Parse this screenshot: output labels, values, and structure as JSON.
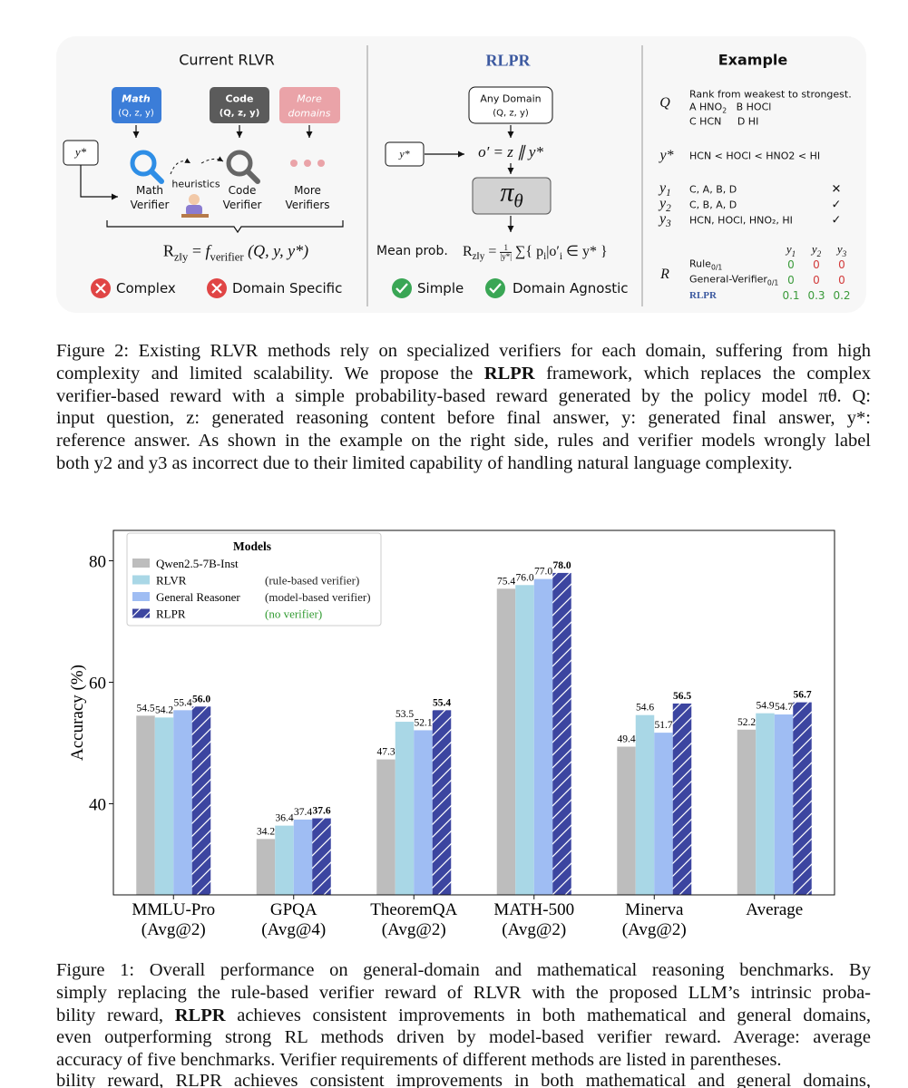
{
  "diagram": {
    "current": {
      "title": "Current RLVR",
      "domains": [
        {
          "name": "Math",
          "args": "(Q, z, y)"
        },
        {
          "name": "Code",
          "args": "(Q, z, y)"
        },
        {
          "name": "More",
          "args": "domains"
        }
      ],
      "reference": "y*",
      "heuristics": "heuristics",
      "verifiers": [
        [
          "Math",
          "Verifier"
        ],
        [
          "Code",
          "Verifier"
        ],
        [
          "More",
          "Verifiers"
        ]
      ],
      "formula": {
        "r": "R",
        "r_sub": "z‖y",
        "eq": "=",
        "f": "f",
        "f_sub": "verifier",
        "args": "(Q, y, y*)"
      },
      "cons": [
        "Complex",
        "Domain Specific"
      ]
    },
    "rlpr": {
      "title": "RLPR",
      "input": [
        "Any Domain",
        "(Q, z, y)"
      ],
      "reference": "y*",
      "concat": "o′ = z ∥ y*",
      "policy": "π",
      "policy_sub": "θ",
      "mean_label": "Mean prob.",
      "formula": {
        "r": "R",
        "r_sub": "z‖y",
        "eq": "=",
        "num": "1",
        "den": "|y*|",
        "sum": "∑{ p",
        "i1": "i",
        "mid": "|o′",
        "i2": "i",
        "rest": "∈ y* }"
      },
      "pros": [
        "Simple",
        "Domain Agnostic"
      ]
    },
    "example": {
      "title": "Example",
      "q_label": "Q",
      "question": "Rank from weakest to strongest.",
      "option_a": "A HNO",
      "option_a_sub": "2",
      "option_b": "B HOCl",
      "option_c": "C HCN",
      "option_d": "D HI",
      "ref_label": "y*",
      "ref_answer": "HCN < HOCl < HNO2 < HI",
      "responses": [
        {
          "label": "y",
          "sub": "1",
          "answer": "C, A, B, D",
          "mark": "✕"
        },
        {
          "label": "y",
          "sub": "2",
          "answer": "C, B, A, D",
          "mark": "✓"
        },
        {
          "label": "y",
          "sub": "3",
          "answer": "HCN, HOCl, HNO₂, HI",
          "mark": "✓"
        }
      ],
      "r_label": "R",
      "columns": [
        {
          "label": "y",
          "sub": "1"
        },
        {
          "label": "y",
          "sub": "2"
        },
        {
          "label": "y",
          "sub": "3"
        }
      ],
      "rows": [
        {
          "name": "Rule",
          "sub": "0/1",
          "values": [
            0,
            0,
            0
          ],
          "colors": [
            "#3a9a3a",
            "#d23a3a",
            "#d23a3a"
          ]
        },
        {
          "name": "General-Verifier",
          "sub": "0/1",
          "values": [
            0,
            0,
            0
          ],
          "colors": [
            "#3a9a3a",
            "#d23a3a",
            "#d23a3a"
          ]
        },
        {
          "name": "RLPR",
          "values": [
            0.1,
            0.3,
            0.2
          ],
          "colors": [
            "#3a9a3a",
            "#3a9a3a",
            "#3a9a3a"
          ]
        }
      ]
    }
  },
  "caption2": [
    "Figure 2: Existing RLVR methods rely on specialized verifiers for each domain, suffering from high",
    "complexity and limited scalability. We propose the RLPR framework, which replaces the complex",
    "verifier-based reward with a simple probability-based reward generated by the policy model πθ. Q:",
    "input question, z: generated reasoning content before final answer, y: generated final answer, y*:",
    "reference answer. As shown in the example on the right side, rules and verifier models wrongly label",
    "both y2 and y3 as incorrect due to their limited capability of handling natural language complexity."
  ],
  "chart_data": {
    "type": "bar",
    "ylabel": "Accuracy (%)",
    "categories": [
      "MMLU-Pro",
      "GPQA",
      "TheoremQA",
      "MATH-500",
      "Minerva",
      "Average"
    ],
    "category_notes": [
      "(Avg@2)",
      "(Avg@4)",
      "(Avg@2)",
      "(Avg@2)",
      "(Avg@2)",
      null
    ],
    "series": [
      {
        "name": "Qwen2.5-7B-Inst",
        "color": "#bdbdbd",
        "values": [
          54.5,
          34.2,
          47.3,
          75.4,
          49.4,
          52.2
        ],
        "value_labels": [
          "54.5",
          "34.2",
          "47.3",
          "75.4",
          "49.4",
          "52.2"
        ]
      },
      {
        "name": "RLVR",
        "color": "#a9d7e6",
        "values": [
          54.2,
          36.4,
          53.5,
          76.0,
          54.6,
          54.9
        ],
        "value_labels": [
          "54.2",
          "36.4",
          "53.5",
          "76.0",
          "54.6",
          "54.9"
        ]
      },
      {
        "name": "General Reasoner",
        "color": "#9fbdf3",
        "values": [
          55.4,
          37.4,
          52.1,
          77.0,
          51.7,
          54.7
        ],
        "value_labels": [
          "55.4",
          "37.4",
          "52.1",
          "77.0",
          "51.7",
          "54.7"
        ]
      },
      {
        "name": "RLPR",
        "color": "#3c45a0",
        "hatch": true,
        "values": [
          56.0,
          37.6,
          55.4,
          78.0,
          56.5,
          56.7
        ],
        "value_labels": [
          "56.0",
          "37.6",
          "55.4",
          "78.0",
          "56.5",
          "56.7"
        ]
      }
    ],
    "legend": {
      "title": "Models",
      "position": "upper left",
      "notes": [
        null,
        "(rule-based verifier)",
        "(model-based verifier)",
        "(no verifier)"
      ],
      "note_colors": [
        null,
        "#222222",
        "#222222",
        "#2f9a2f"
      ]
    },
    "ylim": [
      25,
      85
    ],
    "yticks": [
      40,
      60,
      80
    ],
    "grid": false
  },
  "caption1": [
    "Figure 1: Overall performance on general-domain and mathematical reasoning benchmarks. By",
    "simply replacing the rule-based verifier reward of RLVR with the proposed LLM’s intrinsic proba-",
    "bility reward, RLPR achieves consistent improvements in both mathematical and general domains,",
    "even outperforming strong RL methods driven by model-based verifier reward. Average: average",
    "accuracy of five benchmarks. Verifier requirements of different methods are listed in parentheses."
  ],
  "cut_line": "bility reward, RLPR achieves consistent improvements in both mathematical and general domains,"
}
